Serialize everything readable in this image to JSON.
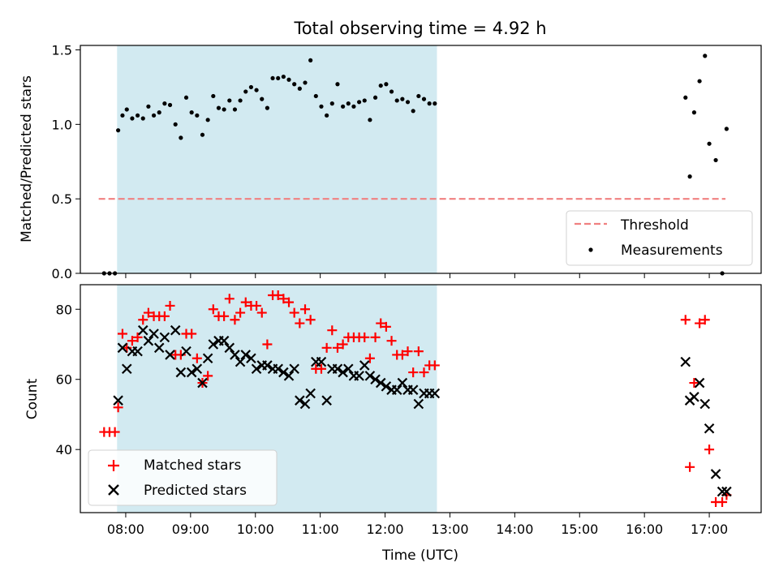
{
  "chart_data": [
    {
      "type": "scatter",
      "title": "Total observing time = 4.92 h",
      "ylabel": "Matched/Predicted stars",
      "xlabel": "",
      "xlim": [
        "07:18",
        "17:48"
      ],
      "ylim": [
        0,
        1.53
      ],
      "yticks": [
        "0.0",
        "0.5",
        "1.0",
        "1.5"
      ],
      "shaded_span": [
        "07:52",
        "12:48"
      ],
      "threshold": {
        "name": "Threshold",
        "y": 0.5,
        "x": [
          "07:35",
          "17:15"
        ],
        "color": "#f08080"
      },
      "series": [
        {
          "name": "Measurements",
          "marker": "dot",
          "color": "#000000",
          "x": [
            "07:40",
            "07:45",
            "07:50",
            "07:53",
            "07:57",
            "08:01",
            "08:06",
            "08:11",
            "08:16",
            "08:21",
            "08:26",
            "08:31",
            "08:36",
            "08:41",
            "08:46",
            "08:51",
            "08:56",
            "09:01",
            "09:06",
            "09:11",
            "09:16",
            "09:21",
            "09:26",
            "09:31",
            "09:36",
            "09:41",
            "09:46",
            "09:51",
            "09:56",
            "10:01",
            "10:06",
            "10:11",
            "10:16",
            "10:21",
            "10:26",
            "10:31",
            "10:36",
            "10:41",
            "10:46",
            "10:51",
            "10:56",
            "11:01",
            "11:06",
            "11:11",
            "11:16",
            "11:21",
            "11:26",
            "11:31",
            "11:36",
            "11:41",
            "11:46",
            "11:51",
            "11:56",
            "12:01",
            "12:06",
            "12:11",
            "12:16",
            "12:21",
            "12:26",
            "12:31",
            "12:36",
            "12:41",
            "12:46",
            "16:38",
            "16:42",
            "16:46",
            "16:51",
            "16:56",
            "17:00",
            "17:06",
            "17:12",
            "17:16"
          ],
          "y": [
            0.0,
            0.0,
            0.0,
            0.96,
            1.06,
            1.1,
            1.04,
            1.06,
            1.04,
            1.12,
            1.06,
            1.08,
            1.14,
            1.13,
            1.0,
            0.91,
            1.18,
            1.08,
            1.06,
            0.93,
            1.03,
            1.19,
            1.11,
            1.1,
            1.16,
            1.1,
            1.16,
            1.22,
            1.25,
            1.23,
            1.17,
            1.11,
            1.31,
            1.31,
            1.32,
            1.3,
            1.27,
            1.24,
            1.28,
            1.43,
            1.19,
            1.12,
            1.06,
            1.14,
            1.27,
            1.12,
            1.14,
            1.12,
            1.15,
            1.16,
            1.03,
            1.18,
            1.26,
            1.27,
            1.22,
            1.16,
            1.17,
            1.15,
            1.09,
            1.19,
            1.17,
            1.14,
            1.14,
            1.18,
            0.65,
            1.08,
            1.29,
            1.46,
            0.87,
            0.76,
            0.0,
            0.97
          ]
        }
      ],
      "legend": {
        "location": "lower-right",
        "entries": [
          "Threshold",
          "Measurements"
        ]
      }
    },
    {
      "type": "scatter",
      "title": "",
      "xlabel": "Time (UTC)",
      "ylabel": "Count",
      "xlim": [
        "07:18",
        "17:48"
      ],
      "ylim": [
        22,
        87
      ],
      "yticks": [
        "40",
        "60",
        "80"
      ],
      "xticks": [
        "08:00",
        "09:00",
        "10:00",
        "11:00",
        "12:00",
        "13:00",
        "14:00",
        "15:00",
        "16:00",
        "17:00"
      ],
      "shaded_span": [
        "07:52",
        "12:48"
      ],
      "series": [
        {
          "name": "Matched stars",
          "marker": "plus",
          "color": "#ff0000",
          "x": [
            "07:40",
            "07:45",
            "07:50",
            "07:53",
            "07:57",
            "08:01",
            "08:06",
            "08:11",
            "08:16",
            "08:21",
            "08:26",
            "08:31",
            "08:36",
            "08:41",
            "08:46",
            "08:51",
            "08:56",
            "09:01",
            "09:06",
            "09:11",
            "09:16",
            "09:21",
            "09:26",
            "09:31",
            "09:36",
            "09:41",
            "09:46",
            "09:51",
            "09:56",
            "10:01",
            "10:06",
            "10:11",
            "10:16",
            "10:21",
            "10:26",
            "10:31",
            "10:36",
            "10:41",
            "10:46",
            "10:51",
            "10:56",
            "11:01",
            "11:06",
            "11:11",
            "11:16",
            "11:21",
            "11:26",
            "11:31",
            "11:36",
            "11:41",
            "11:46",
            "11:51",
            "11:56",
            "12:01",
            "12:06",
            "12:11",
            "12:16",
            "12:21",
            "12:26",
            "12:31",
            "12:36",
            "12:41",
            "12:46",
            "16:38",
            "16:42",
            "16:46",
            "16:51",
            "16:56",
            "17:00",
            "17:06",
            "17:12",
            "17:16"
          ],
          "y": [
            45,
            45,
            45,
            52,
            73,
            69,
            71,
            72,
            77,
            79,
            78,
            78,
            78,
            81,
            67,
            67,
            73,
            73,
            66,
            59,
            61,
            80,
            78,
            78,
            83,
            77,
            79,
            82,
            81,
            81,
            79,
            70,
            84,
            84,
            83,
            82,
            79,
            76,
            80,
            77,
            63,
            63,
            69,
            74,
            69,
            70,
            72,
            72,
            72,
            72,
            66,
            72,
            76,
            75,
            71,
            67,
            67,
            68,
            62,
            68,
            62,
            64,
            64,
            77,
            35,
            59,
            76,
            77,
            40,
            25,
            25,
            27
          ]
        },
        {
          "name": "Predicted stars",
          "marker": "x",
          "color": "#000000",
          "x": [
            "07:53",
            "07:57",
            "08:01",
            "08:06",
            "08:11",
            "08:16",
            "08:21",
            "08:26",
            "08:31",
            "08:36",
            "08:41",
            "08:46",
            "08:51",
            "08:56",
            "09:01",
            "09:06",
            "09:11",
            "09:16",
            "09:21",
            "09:26",
            "09:31",
            "09:36",
            "09:41",
            "09:46",
            "09:51",
            "09:56",
            "10:01",
            "10:06",
            "10:11",
            "10:16",
            "10:21",
            "10:26",
            "10:31",
            "10:36",
            "10:41",
            "10:46",
            "10:51",
            "10:56",
            "11:01",
            "11:06",
            "11:11",
            "11:16",
            "11:21",
            "11:26",
            "11:31",
            "11:36",
            "11:41",
            "11:46",
            "11:51",
            "11:56",
            "12:01",
            "12:06",
            "12:11",
            "12:16",
            "12:21",
            "12:26",
            "12:31",
            "12:36",
            "12:41",
            "12:46",
            "16:38",
            "16:42",
            "16:46",
            "16:51",
            "16:56",
            "17:00",
            "17:06",
            "17:12",
            "17:16"
          ],
          "y": [
            54,
            69,
            63,
            68,
            68,
            74,
            71,
            73,
            69,
            72,
            67,
            74,
            62,
            68,
            62,
            63,
            59,
            66,
            70,
            71,
            71,
            69,
            67,
            65,
            67,
            66,
            63,
            64,
            64,
            63,
            63,
            62,
            61,
            63,
            54,
            53,
            56,
            65,
            65,
            54,
            63,
            63,
            62,
            63,
            61,
            61,
            64,
            61,
            60,
            59,
            58,
            57,
            57,
            59,
            57,
            57,
            53,
            56,
            56,
            56,
            65,
            54,
            55,
            59,
            53,
            46,
            33,
            28,
            28
          ]
        }
      ],
      "legend": {
        "location": "lower-left",
        "entries": [
          "Matched stars",
          "Predicted stars"
        ]
      }
    }
  ]
}
